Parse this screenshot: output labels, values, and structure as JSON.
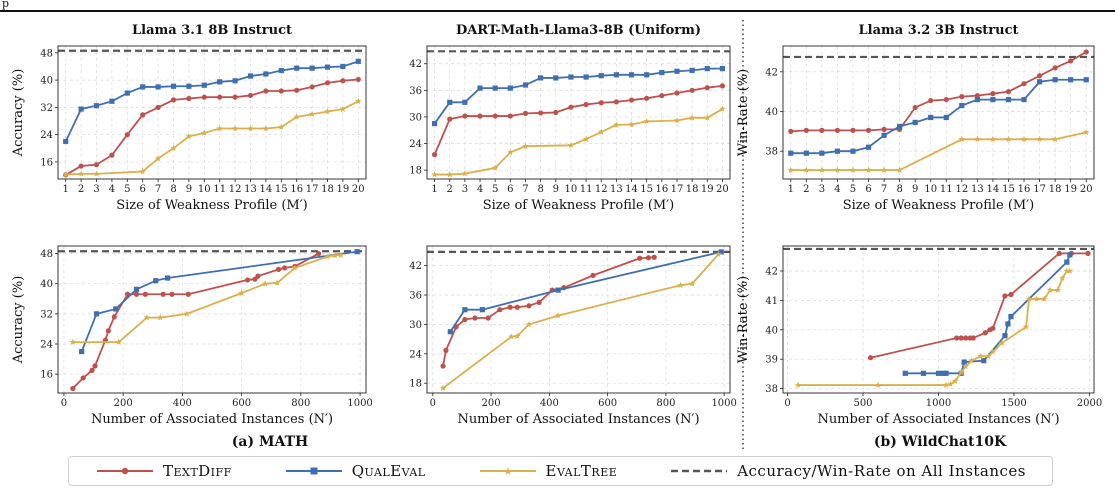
{
  "header_fragment": "p",
  "colors": {
    "TEXTDIFF": "#c0504d",
    "QUALEVAL": "#3f6fb0",
    "EVALTREE": "#dbb04a",
    "ref": "#555555"
  },
  "group_labels": {
    "a": "(a) MATH",
    "b": "(b) WildChat10K"
  },
  "legend": [
    {
      "key": "TEXTDIFF",
      "label": "TextDiff",
      "marker": "circle"
    },
    {
      "key": "QUALEVAL",
      "label": "QualEval",
      "marker": "square"
    },
    {
      "key": "EVALTREE",
      "label": "EvalTree",
      "marker": "star"
    },
    {
      "key": "ref",
      "label": "Accuracy/Win-Rate on All Instances",
      "marker": "dashed"
    }
  ],
  "chart_data": [
    {
      "id": "p1",
      "type": "line",
      "title": "Llama 3.1 8B Instruct",
      "xlabel": "Size of Weakness Profile (M′)",
      "ylabel": "Accuracy (%)",
      "xlim": [
        0.5,
        20.5
      ],
      "ylim": [
        11,
        50
      ],
      "xticks": [
        1,
        2,
        3,
        4,
        5,
        6,
        7,
        8,
        9,
        10,
        11,
        12,
        13,
        14,
        15,
        16,
        17,
        18,
        19,
        20
      ],
      "yticks": [
        16,
        24,
        32,
        40,
        48
      ],
      "ref": 48.6,
      "series": [
        {
          "key": "TEXTDIFF",
          "x": [
            1,
            2,
            3,
            4,
            5,
            6,
            7,
            8,
            9,
            10,
            11,
            12,
            13,
            14,
            15,
            16,
            17,
            18,
            19,
            20
          ],
          "y": [
            12.2,
            14.8,
            15.2,
            18.0,
            24.0,
            29.8,
            32.0,
            34.2,
            34.6,
            35.0,
            35.0,
            35.0,
            35.5,
            36.8,
            36.8,
            37.0,
            38.0,
            39.2,
            39.8,
            40.2
          ]
        },
        {
          "key": "QUALEVAL",
          "x": [
            1,
            2,
            3,
            4,
            5,
            6,
            7,
            8,
            9,
            10,
            11,
            12,
            13,
            14,
            15,
            16,
            17,
            18,
            19,
            20
          ],
          "y": [
            22.0,
            31.5,
            32.5,
            33.8,
            36.2,
            38.0,
            38.0,
            38.2,
            38.2,
            38.5,
            39.5,
            39.8,
            41.2,
            41.8,
            42.8,
            43.5,
            43.5,
            43.8,
            44.0,
            45.5
          ]
        },
        {
          "key": "EVALTREE",
          "x": [
            1,
            2,
            3,
            6,
            7,
            8,
            9,
            10,
            11,
            12,
            13,
            14,
            15,
            16,
            17,
            18,
            19,
            20
          ],
          "y": [
            12.3,
            12.5,
            12.5,
            13.2,
            17.0,
            20.0,
            23.5,
            24.5,
            25.8,
            25.8,
            25.8,
            25.8,
            26.2,
            29.2,
            30.0,
            30.8,
            31.5,
            33.8
          ]
        }
      ]
    },
    {
      "id": "p2",
      "type": "line",
      "title": "DART-Math-Llama3-8B (Uniform)",
      "xlabel": "Size of Weakness Profile (M′)",
      "ylabel": "",
      "xlim": [
        0.5,
        20.5
      ],
      "ylim": [
        16,
        46
      ],
      "xticks": [
        1,
        2,
        3,
        4,
        5,
        6,
        7,
        8,
        9,
        10,
        11,
        12,
        13,
        14,
        15,
        16,
        17,
        18,
        19,
        20
      ],
      "yticks": [
        18,
        24,
        30,
        36,
        42
      ],
      "ref": 44.8,
      "series": [
        {
          "key": "TEXTDIFF",
          "x": [
            1,
            2,
            3,
            4,
            5,
            6,
            7,
            8,
            9,
            10,
            11,
            12,
            13,
            14,
            15,
            16,
            17,
            18,
            19,
            20
          ],
          "y": [
            21.5,
            29.5,
            30.2,
            30.2,
            30.2,
            30.2,
            30.8,
            30.9,
            31.0,
            32.2,
            32.8,
            33.2,
            33.4,
            33.8,
            34.2,
            34.8,
            35.4,
            36.0,
            36.6,
            37.0
          ]
        },
        {
          "key": "QUALEVAL",
          "x": [
            1,
            2,
            3,
            4,
            5,
            6,
            7,
            8,
            9,
            10,
            11,
            12,
            13,
            14,
            15,
            16,
            17,
            18,
            19,
            20
          ],
          "y": [
            28.5,
            33.3,
            33.3,
            36.5,
            36.5,
            36.5,
            37.2,
            38.8,
            38.8,
            39.0,
            39.0,
            39.3,
            39.5,
            39.5,
            39.5,
            40.0,
            40.3,
            40.5,
            40.9,
            40.9
          ]
        },
        {
          "key": "EVALTREE",
          "x": [
            1,
            2,
            3,
            5,
            6,
            7,
            10,
            11,
            12,
            13,
            14,
            15,
            17,
            18,
            19,
            20
          ],
          "y": [
            17.0,
            17.0,
            17.2,
            18.5,
            22.0,
            23.4,
            23.6,
            25.0,
            26.6,
            28.2,
            28.3,
            29.0,
            29.2,
            29.8,
            29.8,
            31.8
          ]
        }
      ]
    },
    {
      "id": "p3",
      "type": "line",
      "title": "Llama 3.2 3B Instruct",
      "xlabel": "Size of Weakness Profile (M′)",
      "ylabel": "Win-Rate (%)",
      "xlim": [
        0.5,
        20.5
      ],
      "ylim": [
        36.6,
        43.3
      ],
      "xticks": [
        1,
        2,
        3,
        4,
        5,
        6,
        7,
        8,
        9,
        10,
        11,
        12,
        13,
        14,
        15,
        16,
        17,
        18,
        19,
        20
      ],
      "yticks": [
        38,
        40,
        42
      ],
      "ref": 42.75,
      "series": [
        {
          "key": "TEXTDIFF",
          "x": [
            1,
            2,
            3,
            4,
            5,
            6,
            7,
            8,
            9,
            10,
            11,
            12,
            13,
            14,
            15,
            16,
            17,
            18,
            19,
            20
          ],
          "y": [
            39.0,
            39.05,
            39.05,
            39.05,
            39.05,
            39.05,
            39.1,
            39.1,
            40.2,
            40.55,
            40.6,
            40.75,
            40.8,
            40.9,
            41.0,
            41.4,
            41.8,
            42.2,
            42.55,
            43.0
          ]
        },
        {
          "key": "QUALEVAL",
          "x": [
            1,
            2,
            3,
            4,
            5,
            6,
            7,
            8,
            9,
            10,
            11,
            12,
            13,
            14,
            15,
            16,
            17,
            18,
            19,
            20
          ],
          "y": [
            37.9,
            37.9,
            37.9,
            38.0,
            38.0,
            38.2,
            38.8,
            39.25,
            39.45,
            39.7,
            39.7,
            40.3,
            40.6,
            40.6,
            40.6,
            40.6,
            41.5,
            41.6,
            41.6,
            41.6
          ]
        },
        {
          "key": "EVALTREE",
          "x": [
            1,
            2,
            3,
            4,
            5,
            6,
            7,
            8,
            12,
            13,
            14,
            15,
            16,
            17,
            18,
            20
          ],
          "y": [
            37.05,
            37.05,
            37.05,
            37.05,
            37.05,
            37.05,
            37.05,
            37.05,
            38.6,
            38.6,
            38.6,
            38.6,
            38.6,
            38.6,
            38.6,
            38.95
          ]
        }
      ]
    },
    {
      "id": "p4",
      "type": "line",
      "title": "",
      "xlabel": "Number of Associated Instances (N′)",
      "ylabel": "Accuracy (%)",
      "xlim": [
        -20,
        1020
      ],
      "ylim": [
        11,
        50
      ],
      "xticks": [
        0,
        200,
        400,
        600,
        800,
        1000
      ],
      "yticks": [
        16,
        24,
        32,
        40,
        48
      ],
      "ref": 48.6,
      "series": [
        {
          "key": "TEXTDIFF",
          "x": [
            30,
            65,
            95,
            105,
            140,
            150,
            170,
            215,
            245,
            275,
            335,
            365,
            420,
            620,
            645,
            655,
            725,
            745,
            780,
            860
          ],
          "y": [
            12.2,
            15.0,
            17.0,
            18.2,
            25.0,
            27.5,
            31.2,
            37.2,
            37.2,
            37.2,
            37.2,
            37.2,
            37.2,
            41.0,
            41.2,
            42.0,
            43.8,
            44.2,
            44.6,
            48.0
          ]
        },
        {
          "key": "QUALEVAL",
          "x": [
            60,
            110,
            175,
            245,
            310,
            350,
            990
          ],
          "y": [
            22.0,
            32.0,
            33.3,
            38.5,
            40.8,
            41.5,
            48.5
          ]
        },
        {
          "key": "EVALTREE",
          "x": [
            30,
            185,
            280,
            325,
            415,
            600,
            680,
            720,
            780,
            890,
            915,
            935
          ],
          "y": [
            24.5,
            24.5,
            31.0,
            31.0,
            32.0,
            37.5,
            40.0,
            40.2,
            44.2,
            47.2,
            47.5,
            47.6
          ]
        }
      ]
    },
    {
      "id": "p5",
      "type": "line",
      "title": "",
      "xlabel": "Number of Associated Instances (N′)",
      "ylabel": "",
      "xlim": [
        -20,
        1020
      ],
      "ylim": [
        16,
        46
      ],
      "xticks": [
        0,
        200,
        400,
        600,
        800,
        1000
      ],
      "yticks": [
        18,
        24,
        30,
        36,
        42
      ],
      "ref": 44.8,
      "series": [
        {
          "key": "TEXTDIFF",
          "x": [
            35,
            45,
            80,
            110,
            145,
            190,
            230,
            265,
            290,
            330,
            365,
            410,
            450,
            550,
            710,
            740,
            760
          ],
          "y": [
            21.5,
            24.7,
            29.5,
            31.0,
            31.3,
            31.3,
            33.0,
            33.5,
            33.5,
            33.8,
            34.5,
            37.0,
            37.5,
            40.0,
            43.5,
            43.6,
            43.7
          ]
        },
        {
          "key": "QUALEVAL",
          "x": [
            60,
            110,
            170,
            430,
            990
          ],
          "y": [
            28.5,
            33.0,
            33.0,
            37.0,
            44.8
          ]
        },
        {
          "key": "EVALTREE",
          "x": [
            35,
            270,
            290,
            330,
            430,
            850,
            890,
            980
          ],
          "y": [
            17.0,
            27.5,
            27.6,
            30.0,
            31.8,
            38.0,
            38.3,
            44.3
          ]
        }
      ]
    },
    {
      "id": "p6",
      "type": "line",
      "title": "",
      "xlabel": "Number of Associated Instances (N′)",
      "ylabel": "Win-Rate (%)",
      "xlim": [
        -30,
        2030
      ],
      "ylim": [
        37.85,
        42.85
      ],
      "xticks": [
        0,
        500,
        1000,
        1500,
        2000
      ],
      "yticks": [
        38,
        39,
        40,
        41,
        42
      ],
      "ref": 42.75,
      "series": [
        {
          "key": "TEXTDIFF",
          "x": [
            550,
            1120,
            1150,
            1180,
            1210,
            1230,
            1310,
            1340,
            1360,
            1440,
            1480,
            1800,
            1880,
            1990
          ],
          "y": [
            39.05,
            39.72,
            39.72,
            39.72,
            39.72,
            39.72,
            39.9,
            40.0,
            40.05,
            41.15,
            41.2,
            42.6,
            42.6,
            42.6
          ]
        },
        {
          "key": "QUALEVAL",
          "x": [
            780,
            900,
            1000,
            1030,
            1050,
            1150,
            1170,
            1300,
            1440,
            1460,
            1480,
            1850,
            1870
          ],
          "y": [
            38.52,
            38.52,
            38.52,
            38.52,
            38.52,
            38.52,
            38.9,
            38.95,
            39.8,
            40.2,
            40.45,
            42.3,
            42.55
          ]
        },
        {
          "key": "EVALTREE",
          "x": [
            70,
            600,
            1050,
            1080,
            1110,
            1150,
            1180,
            1220,
            1280,
            1330,
            1360,
            1420,
            1580,
            1600,
            1650,
            1700,
            1740,
            1790,
            1820,
            1850,
            1870
          ],
          "y": [
            38.12,
            38.12,
            38.12,
            38.15,
            38.25,
            38.55,
            38.75,
            38.95,
            39.1,
            39.1,
            39.25,
            39.55,
            40.1,
            41.05,
            41.05,
            41.05,
            41.35,
            41.35,
            41.75,
            42.0,
            42.0
          ]
        }
      ]
    }
  ]
}
